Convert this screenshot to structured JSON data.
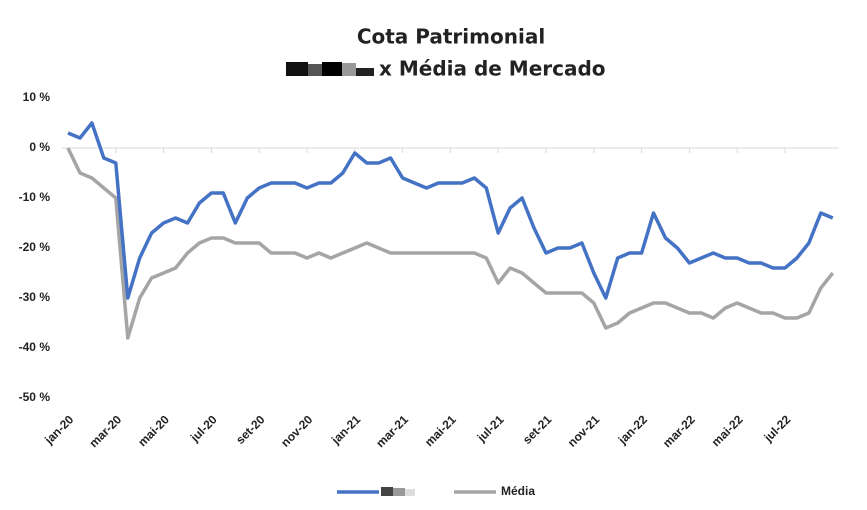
{
  "chart_data": {
    "type": "line",
    "title": "Cota Patrimonial",
    "subtitle": "x Média de Mercado",
    "categories": [
      "jan-20",
      null,
      null,
      null,
      "mar-20",
      null,
      null,
      null,
      "mai-20",
      null,
      null,
      null,
      "jul-20",
      null,
      null,
      null,
      "set-20",
      null,
      null,
      null,
      "nov-20",
      null,
      null,
      null,
      "jan-21",
      null,
      null,
      null,
      "mar-21",
      null,
      null,
      null,
      "mai-21",
      null,
      null,
      null,
      "jul-21",
      null,
      null,
      null,
      "set-21",
      null,
      null,
      null,
      "nov-21",
      null,
      null,
      null,
      "jan-22",
      null,
      null,
      null,
      "mar-22",
      null,
      null,
      null,
      "mai-22",
      null,
      null,
      null,
      "jul-22",
      null,
      null,
      null,
      null
    ],
    "series": [
      {
        "name": null,
        "color": "#4472c4",
        "values": [
          3,
          2,
          5,
          -2,
          -3,
          -30,
          -22,
          -17,
          -15,
          -14,
          -15,
          -11,
          -9,
          -9,
          -15,
          -10,
          -8,
          -7,
          -7,
          -7,
          -8,
          -7,
          -7,
          -5,
          -1,
          -3,
          -3,
          -2,
          -6,
          -7,
          -8,
          -7,
          -7,
          -7,
          -6,
          -8,
          -17,
          -12,
          -10,
          -16,
          -21,
          -20,
          -20,
          -19,
          -25,
          -30,
          -22,
          -21,
          -21,
          -13,
          -18,
          -20,
          -23,
          -22,
          -21,
          -22,
          -22,
          -23,
          -23,
          -24,
          -24,
          -22,
          -19,
          -13,
          -14
        ]
      },
      {
        "name": "Média",
        "color": "#a5a5a5",
        "values": [
          0,
          -5,
          -6,
          -8,
          -10,
          -38,
          -30,
          -26,
          -25,
          -24,
          -21,
          -19,
          -18,
          -18,
          -19,
          -19,
          -19,
          -21,
          -21,
          -21,
          -22,
          -21,
          -22,
          -21,
          -20,
          -19,
          -20,
          -21,
          -21,
          -21,
          -21,
          -21,
          -21,
          -21,
          -21,
          -22,
          -27,
          -24,
          -25,
          -27,
          -29,
          -29,
          -29,
          -29,
          -31,
          -36,
          -35,
          -33,
          -32,
          -31,
          -31,
          -32,
          -33,
          -33,
          -34,
          -32,
          -31,
          -32,
          -33,
          -33,
          -34,
          -34,
          -33,
          -28,
          -25
        ]
      }
    ],
    "ylim": [
      -50,
      10
    ],
    "yticks": [
      {
        "value": 10,
        "label": "10 %"
      },
      {
        "value": 0,
        "label": "0 %"
      },
      {
        "value": -10,
        "label": "-10 %"
      },
      {
        "value": -20,
        "label": "-20 %"
      },
      {
        "value": -30,
        "label": "-30 %"
      },
      {
        "value": -40,
        "label": "-40 %"
      },
      {
        "value": -50,
        "label": "-50 %"
      }
    ],
    "grid": false
  }
}
